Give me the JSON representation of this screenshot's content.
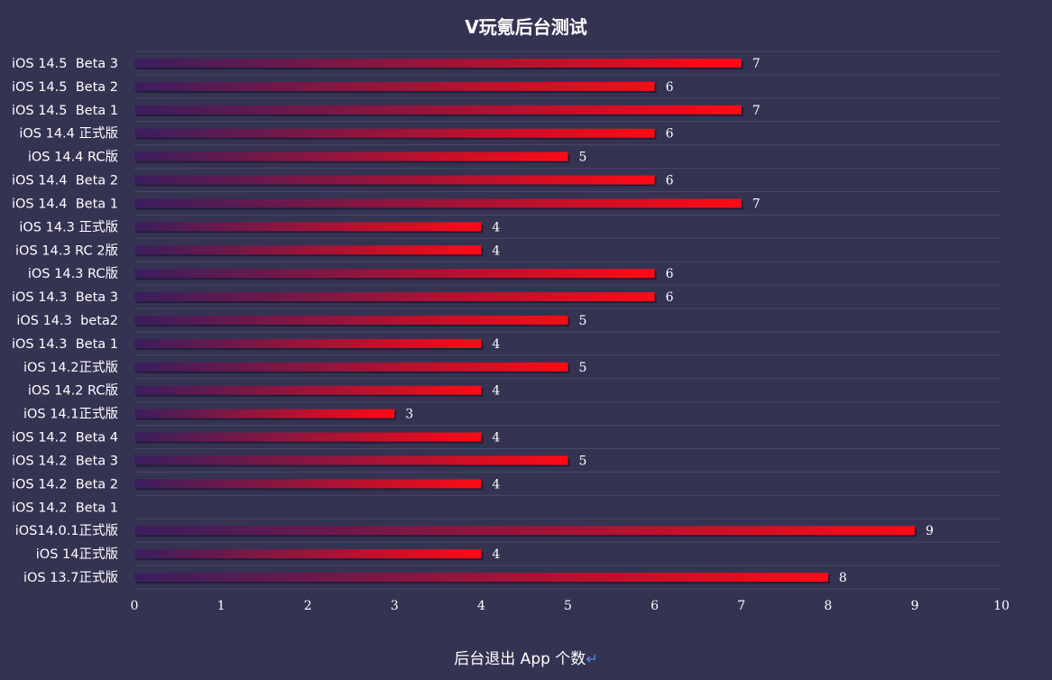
{
  "chart_data": {
    "type": "bar",
    "orientation": "horizontal",
    "title": "V玩氪后台测试",
    "xlabel": "后台退出 App 个数",
    "ylabel": "",
    "xlim": [
      0,
      10
    ],
    "xticks": [
      0,
      1,
      2,
      3,
      4,
      5,
      6,
      7,
      8,
      9,
      10
    ],
    "grid": true,
    "bar_gradient": [
      "#3a1e5e",
      "#ff0a14"
    ],
    "categories": [
      "iOS 14.5  Beta 3",
      "iOS 14.5  Beta 2",
      "iOS 14.5  Beta 1",
      "iOS 14.4 正式版",
      "iOS 14.4 RC版",
      "iOS 14.4  Beta 2",
      "iOS 14.4  Beta 1",
      "iOS 14.3 正式版",
      "iOS 14.3 RC 2版",
      "iOS 14.3 RC版",
      "iOS 14.3  Beta 3",
      "iOS 14.3  beta2",
      "iOS 14.3  Beta 1",
      "iOS 14.2正式版",
      "iOS 14.2 RC版",
      "iOS 14.1正式版",
      "iOS 14.2  Beta 4",
      "iOS 14.2  Beta 3",
      "iOS 14.2  Beta 2",
      "iOS 14.2  Beta 1",
      "iOS14.0.1正式版",
      "iOS 14正式版",
      "iOS 13.7正式版"
    ],
    "values": [
      7,
      6,
      7,
      6,
      5,
      6,
      7,
      4,
      4,
      6,
      6,
      5,
      4,
      5,
      4,
      3,
      4,
      5,
      4,
      null,
      9,
      4,
      8
    ]
  }
}
